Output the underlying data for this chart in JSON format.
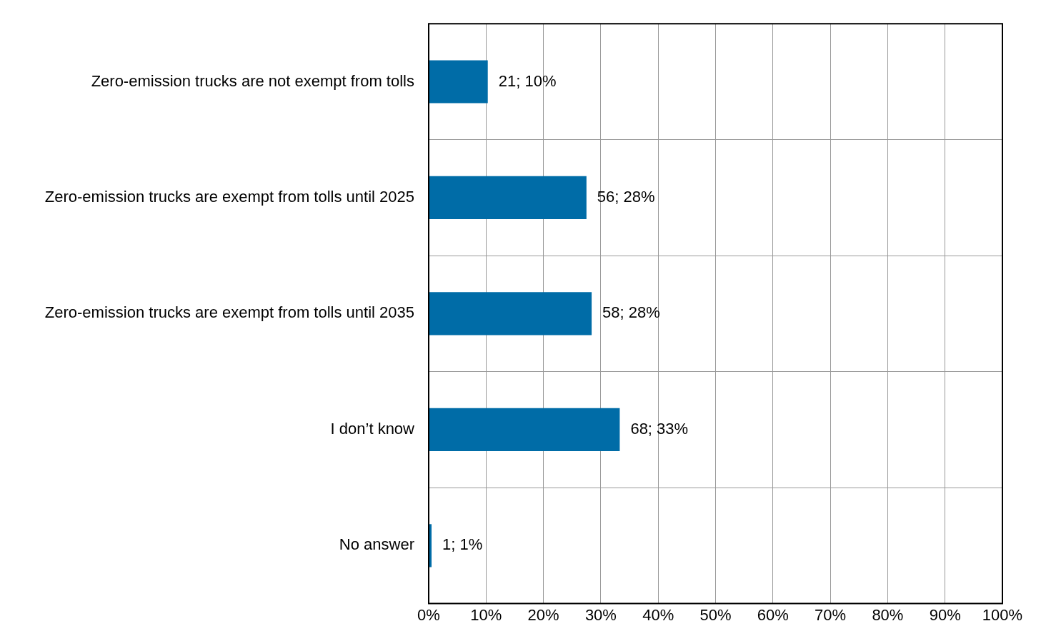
{
  "chart_data": {
    "type": "bar",
    "orientation": "horizontal",
    "categories": [
      "Zero-emission trucks are not exempt from tolls",
      "Zero-emission trucks are exempt from tolls until 2025",
      "Zero-emission trucks are exempt from tolls until 2035",
      "I don’t know",
      "No answer"
    ],
    "values": [
      10.3,
      27.5,
      28.4,
      33.3,
      0.5
    ],
    "value_labels": [
      "21; 10%",
      "56; 28%",
      "58; 28%",
      "68; 33%",
      "1; 1%"
    ],
    "color": "#006ca7",
    "xlim": [
      0,
      100
    ],
    "xticks": [
      {
        "value": 0,
        "label": "0%"
      },
      {
        "value": 10,
        "label": "10%"
      },
      {
        "value": 20,
        "label": "20%"
      },
      {
        "value": 30,
        "label": "30%"
      },
      {
        "value": 40,
        "label": "40%"
      },
      {
        "value": 50,
        "label": "50%"
      },
      {
        "value": 60,
        "label": "60%"
      },
      {
        "value": 70,
        "label": "70%"
      },
      {
        "value": 80,
        "label": "80%"
      },
      {
        "value": 90,
        "label": "90%"
      },
      {
        "value": 100,
        "label": "100%"
      }
    ],
    "grid": true,
    "legend": false
  }
}
